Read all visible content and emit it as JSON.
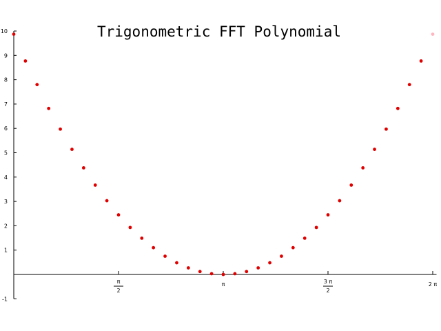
{
  "chart_data": {
    "type": "scatter",
    "title": "Trigonometric FFT Polynomial",
    "xlabel": "",
    "ylabel": "",
    "xlim": [
      -0.0245,
      6.34
    ],
    "ylim": [
      -1,
      10
    ],
    "grid": false,
    "y_ticks": [
      -1,
      1,
      2,
      3,
      4,
      5,
      6,
      7,
      8,
      9,
      10
    ],
    "x_ticks": [
      {
        "value": 1.5708,
        "num": "π",
        "den": "2"
      },
      {
        "value": 3.1416,
        "label": "π"
      },
      {
        "value": 4.7124,
        "num": "3 π",
        "den": "2"
      },
      {
        "value": 6.2832,
        "label": "2 π"
      }
    ],
    "series": [
      {
        "color": "#e00000",
        "x": [
          0,
          0.1745,
          0.3491,
          0.5236,
          0.6981,
          0.8727,
          1.0472,
          1.2217,
          1.3963,
          1.5708,
          1.7453,
          1.9199,
          2.0944,
          2.2689,
          2.4435,
          2.618,
          2.7925,
          2.967,
          3.1416,
          3.3161,
          3.4907,
          3.6652,
          3.8397,
          4.0143,
          4.1888,
          4.3633,
          4.5379,
          4.7124,
          4.8869,
          5.0615,
          5.236,
          5.4105,
          5.5851,
          5.7596,
          5.9341,
          6.1087
        ],
        "y": [
          9.87,
          8.77,
          7.8,
          6.82,
          5.97,
          5.14,
          4.38,
          3.67,
          3.03,
          2.45,
          1.93,
          1.49,
          1.1,
          0.75,
          0.48,
          0.27,
          0.12,
          0.03,
          0.0,
          0.03,
          0.12,
          0.27,
          0.48,
          0.75,
          1.1,
          1.49,
          1.93,
          2.45,
          3.03,
          3.67,
          4.38,
          5.14,
          5.97,
          6.82,
          7.8,
          8.77
        ]
      },
      {
        "color": "#ffb6c1",
        "x": [
          6.2832
        ],
        "y": [
          9.87
        ]
      }
    ]
  }
}
